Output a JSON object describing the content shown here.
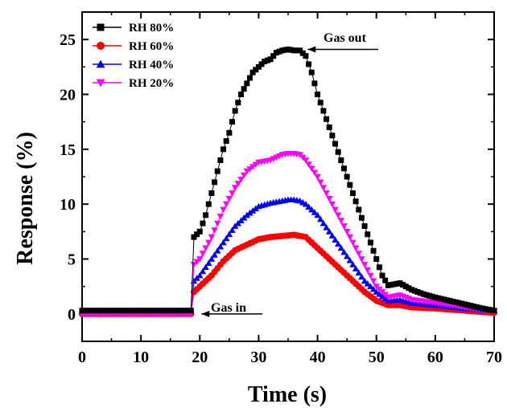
{
  "chart_data": {
    "type": "scatter",
    "xlabel": "Time (s)",
    "ylabel": "Response (%)",
    "xlim": [
      0,
      70
    ],
    "ylim": [
      -2.5,
      27.5
    ],
    "xticks": [
      0,
      10,
      20,
      30,
      40,
      50,
      60,
      70
    ],
    "yticks": [
      0,
      5,
      10,
      15,
      20,
      25
    ],
    "grid": false,
    "legend_position": "top-left",
    "series": [
      {
        "name": "RH 80%",
        "color": "#000000",
        "marker": "square",
        "points": [
          [
            0,
            0.3
          ],
          [
            5,
            0.3
          ],
          [
            10,
            0.3
          ],
          [
            15,
            0.3
          ],
          [
            18.5,
            0.3
          ],
          [
            19,
            7
          ],
          [
            20,
            7.5
          ],
          [
            21,
            9
          ],
          [
            22,
            11
          ],
          [
            23,
            13
          ],
          [
            24,
            15
          ],
          [
            25,
            16.5
          ],
          [
            26,
            18.5
          ],
          [
            27,
            20
          ],
          [
            28,
            21
          ],
          [
            29,
            22
          ],
          [
            30,
            22.5
          ],
          [
            31,
            23
          ],
          [
            32,
            23.2
          ],
          [
            33,
            23.8
          ],
          [
            34,
            24
          ],
          [
            35,
            24.1
          ],
          [
            36,
            24
          ],
          [
            37,
            24
          ],
          [
            38,
            23.5
          ],
          [
            39,
            22
          ],
          [
            40,
            20
          ],
          [
            42,
            17
          ],
          [
            44,
            14
          ],
          [
            46,
            11
          ],
          [
            48,
            8
          ],
          [
            50,
            5
          ],
          [
            51,
            3.5
          ],
          [
            52,
            2.6
          ],
          [
            54,
            2.8
          ],
          [
            56,
            2.2
          ],
          [
            58,
            1.8
          ],
          [
            60,
            1.5
          ],
          [
            64,
            1
          ],
          [
            68,
            0.5
          ],
          [
            70,
            0.3
          ]
        ]
      },
      {
        "name": "RH 60%",
        "color": "#ff0000",
        "marker": "circle",
        "points": [
          [
            0,
            0
          ],
          [
            5,
            0
          ],
          [
            10,
            0
          ],
          [
            15,
            0
          ],
          [
            18.5,
            0
          ],
          [
            19,
            2
          ],
          [
            20,
            2.5
          ],
          [
            22,
            3.5
          ],
          [
            24,
            4.8
          ],
          [
            26,
            5.8
          ],
          [
            28,
            6.3
          ],
          [
            30,
            6.8
          ],
          [
            32,
            7
          ],
          [
            34,
            7.1
          ],
          [
            36,
            7.2
          ],
          [
            38,
            7
          ],
          [
            40,
            6
          ],
          [
            42,
            5
          ],
          [
            44,
            4
          ],
          [
            46,
            3
          ],
          [
            48,
            2
          ],
          [
            50,
            1.2
          ],
          [
            52,
            0.8
          ],
          [
            54,
            0.8
          ],
          [
            56,
            0.6
          ],
          [
            60,
            0.5
          ],
          [
            65,
            0.3
          ],
          [
            70,
            0.1
          ]
        ]
      },
      {
        "name": "RH 40%",
        "color": "#0000ff",
        "marker": "triangle-up",
        "points": [
          [
            0,
            0.2
          ],
          [
            5,
            0.2
          ],
          [
            10,
            0.2
          ],
          [
            15,
            0.2
          ],
          [
            18.5,
            0.2
          ],
          [
            19,
            3
          ],
          [
            20,
            3.5
          ],
          [
            22,
            5
          ],
          [
            24,
            6.5
          ],
          [
            26,
            8
          ],
          [
            28,
            9
          ],
          [
            30,
            9.8
          ],
          [
            32,
            10.1
          ],
          [
            34,
            10.3
          ],
          [
            35,
            10.4
          ],
          [
            36,
            10.4
          ],
          [
            37,
            10.3
          ],
          [
            38,
            10
          ],
          [
            40,
            9
          ],
          [
            42,
            7.5
          ],
          [
            44,
            6
          ],
          [
            46,
            4.5
          ],
          [
            48,
            3
          ],
          [
            50,
            2
          ],
          [
            52,
            1.2
          ],
          [
            54,
            1.3
          ],
          [
            56,
            1
          ],
          [
            60,
            0.8
          ],
          [
            65,
            0.5
          ],
          [
            70,
            0.3
          ]
        ]
      },
      {
        "name": "RH 20%",
        "color": "#ff00ff",
        "marker": "triangle-down",
        "points": [
          [
            0,
            0
          ],
          [
            5,
            0
          ],
          [
            10,
            0
          ],
          [
            15,
            0
          ],
          [
            18.5,
            0
          ],
          [
            19,
            4.5
          ],
          [
            20,
            5
          ],
          [
            22,
            7
          ],
          [
            24,
            9.5
          ],
          [
            26,
            11.5
          ],
          [
            28,
            13
          ],
          [
            30,
            13.8
          ],
          [
            32,
            14
          ],
          [
            34,
            14.5
          ],
          [
            35,
            14.6
          ],
          [
            36,
            14.6
          ],
          [
            37,
            14.5
          ],
          [
            38,
            14
          ],
          [
            40,
            12.5
          ],
          [
            42,
            10.5
          ],
          [
            44,
            8.5
          ],
          [
            46,
            6.5
          ],
          [
            48,
            4.5
          ],
          [
            50,
            2.5
          ],
          [
            52,
            1.5
          ],
          [
            54,
            1.7
          ],
          [
            56,
            1.3
          ],
          [
            60,
            1
          ],
          [
            65,
            0.6
          ],
          [
            70,
            0.2
          ]
        ]
      }
    ],
    "annotations": [
      {
        "text": "Gas out",
        "x": 37.5,
        "y": 24.1
      },
      {
        "text": "Gas in",
        "x": 20,
        "y": 0
      }
    ]
  }
}
